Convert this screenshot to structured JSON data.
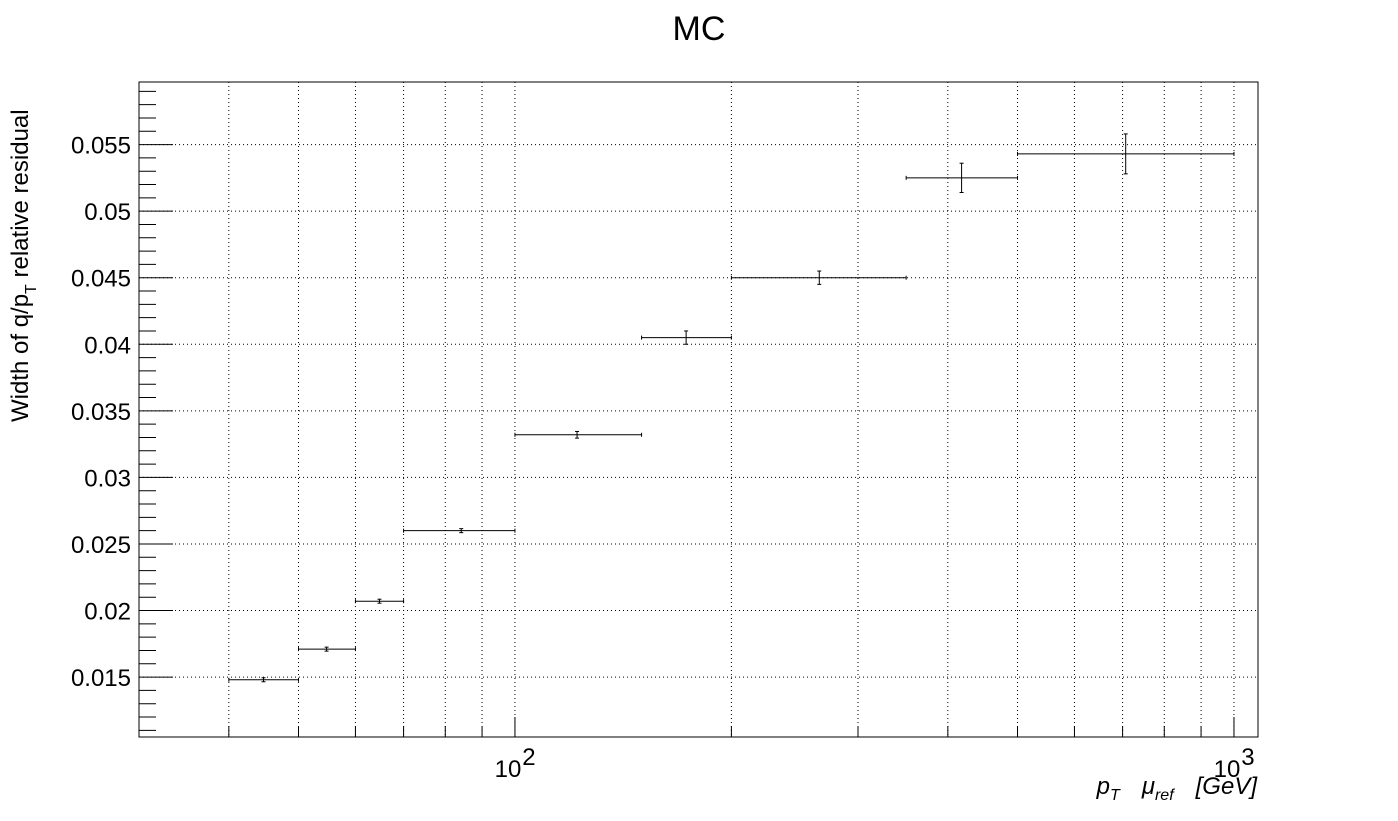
{
  "chart_data": {
    "type": "scatter",
    "title": "MC",
    "ylabel": "Width of q/p_T relative residual",
    "ylabel_parts": {
      "main": "Width of q/p",
      "sub": "T",
      "rest": " relative residual"
    },
    "xlabel": "p_T  μ_ref  [GeV]",
    "xlabel_parts": {
      "p": "p",
      "p_sub": "T",
      "mu": "μ",
      "mu_sub": "ref",
      "unit": "[GeV]"
    },
    "x_scale": "log",
    "xlim": [
      30,
      1080
    ],
    "ylim": [
      0.0105,
      0.0597
    ],
    "x_tick_labels": [
      {
        "value": 100,
        "base": "10",
        "exp": "2"
      },
      {
        "value": 1000,
        "base": "10",
        "exp": "3"
      }
    ],
    "y_ticks": [
      0.015,
      0.02,
      0.025,
      0.03,
      0.035,
      0.04,
      0.045,
      0.05,
      0.055
    ],
    "y_tick_labels": [
      "0.015",
      "0.02",
      "0.025",
      "0.03",
      "0.035",
      "0.04",
      "0.045",
      "0.05",
      "0.055"
    ],
    "grid": true,
    "series": [
      {
        "points": [
          {
            "xlo": 40,
            "xhi": 50,
            "x": 44.7,
            "y": 0.0148,
            "yerr": 0.00015
          },
          {
            "xlo": 50,
            "xhi": 60,
            "x": 54.7,
            "y": 0.0171,
            "yerr": 0.00015
          },
          {
            "xlo": 60,
            "xhi": 70,
            "x": 64.8,
            "y": 0.0207,
            "yerr": 0.00015
          },
          {
            "xlo": 70,
            "xhi": 100,
            "x": 84.2,
            "y": 0.026,
            "yerr": 0.00015
          },
          {
            "xlo": 100,
            "xhi": 150,
            "x": 122,
            "y": 0.0332,
            "yerr": 0.00025
          },
          {
            "xlo": 150,
            "xhi": 200,
            "x": 173,
            "y": 0.0405,
            "yerr": 0.0005
          },
          {
            "xlo": 200,
            "xhi": 350,
            "x": 265,
            "y": 0.045,
            "yerr": 0.0005
          },
          {
            "xlo": 350,
            "xhi": 500,
            "x": 418,
            "y": 0.0525,
            "yerr": 0.0011
          },
          {
            "xlo": 500,
            "xhi": 1000,
            "x": 707,
            "y": 0.0543,
            "yerr": 0.0015
          }
        ]
      }
    ]
  }
}
